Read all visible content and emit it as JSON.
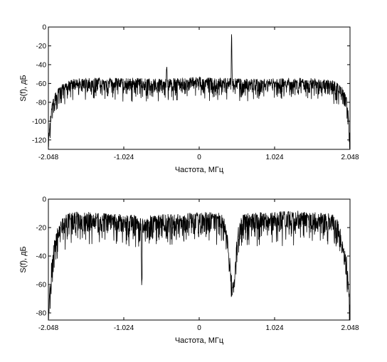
{
  "chart_data": [
    {
      "type": "line",
      "xlabel": "Частота, МГц",
      "ylabel": "S(f), дБ",
      "xlim": [
        -2.048,
        2.048
      ],
      "ylim": [
        -130,
        0
      ],
      "xticks": [
        -2.048,
        -1.024,
        0,
        1.024,
        2.048
      ],
      "xtick_labels": [
        "-2.048",
        "-1.024",
        "0",
        "1.024",
        "2.048"
      ],
      "yticks": [
        0,
        -20,
        -40,
        -60,
        -80,
        -100,
        -120
      ],
      "ytick_labels": [
        "0",
        "-20",
        "-40",
        "-60",
        "-80",
        "-100",
        "-120"
      ],
      "grid": false,
      "series": [
        {
          "color": "#000000",
          "x": [
            -2.048,
            -2.02,
            -2.0,
            -1.98,
            -1.95,
            -1.9,
            -1.85,
            -1.8,
            -1.75,
            -1.7,
            -1.6,
            -1.5,
            -1.2,
            -0.9,
            -0.6,
            -0.45,
            -0.44,
            -0.43,
            -0.3,
            0.0,
            0.2,
            0.4,
            0.43,
            0.44,
            0.45,
            0.46,
            0.6,
            0.9,
            1.2,
            1.5,
            1.8,
            1.85,
            1.9,
            1.95,
            2.0,
            2.03,
            2.048
          ],
          "y": [
            -122,
            -100,
            -88,
            -82,
            -75,
            -70,
            -66,
            -64,
            -62,
            -61,
            -60,
            -60,
            -60,
            -60,
            -61,
            -61,
            -40,
            -61,
            -60,
            -59,
            -60,
            -60,
            -60,
            -1,
            -60,
            -60,
            -61,
            -61,
            -60,
            -60,
            -62,
            -64,
            -66,
            -70,
            -80,
            -100,
            -128
          ]
        }
      ]
    },
    {
      "type": "line",
      "xlabel": "Частота, МГц",
      "ylabel": "S(f), дБ",
      "xlim": [
        -2.048,
        2.048
      ],
      "ylim": [
        -85,
        0
      ],
      "xticks": [
        -2.048,
        -1.024,
        0,
        1.024,
        2.048
      ],
      "xtick_labels": [
        "-2.048",
        "-1.024",
        "0",
        "1.024",
        "2.048"
      ],
      "yticks": [
        0,
        -20,
        -40,
        -60,
        -80
      ],
      "ytick_labels": [
        "0",
        "-20",
        "-40",
        "-60",
        "-80"
      ],
      "grid": false,
      "series": [
        {
          "color": "#000000",
          "x": [
            -2.048,
            -2.02,
            -2.0,
            -1.97,
            -1.94,
            -1.9,
            -1.85,
            -1.8,
            -1.7,
            -1.5,
            -1.2,
            -0.9,
            -0.79,
            -0.78,
            -0.77,
            -0.6,
            -0.3,
            0.0,
            0.2,
            0.3,
            0.36,
            0.4,
            0.43,
            0.46,
            0.48,
            0.5,
            0.53,
            0.58,
            0.7,
            1.0,
            1.3,
            1.6,
            1.8,
            1.88,
            1.94,
            2.0,
            2.03,
            2.048
          ],
          "y": [
            -80,
            -60,
            -45,
            -35,
            -28,
            -22,
            -18,
            -16,
            -15,
            -15,
            -16,
            -17,
            -18,
            -66,
            -18,
            -17,
            -16,
            -15,
            -15,
            -16,
            -20,
            -35,
            -55,
            -65,
            -58,
            -40,
            -25,
            -17,
            -15,
            -15,
            -14,
            -15,
            -16,
            -20,
            -30,
            -45,
            -65,
            -85
          ]
        }
      ]
    }
  ]
}
